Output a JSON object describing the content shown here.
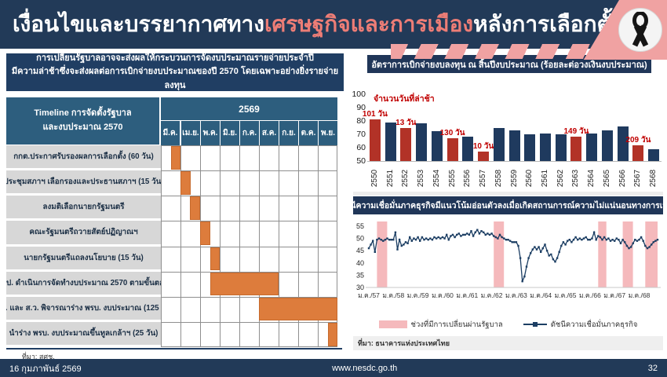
{
  "header": {
    "title_pre": "เงื่อนไขและบรรยากาศทาง",
    "title_highlight": "เศรษฐกิจและการเมือง",
    "title_post": "หลังการเลือกตั้ง",
    "ribbon_icon": "black-mourning-ribbon"
  },
  "colors": {
    "navy": "#223A58",
    "steel_blue": "#2D5E7E",
    "orange": "#DD7C3C",
    "bar_navy": "#1F3A5E",
    "bar_red": "#B23227",
    "label_red": "#C00000",
    "pink": "#F0A2A2",
    "band_pink": "#F5B9BC",
    "line_navy": "#1C3E63",
    "title_red": "#ED7D76",
    "cell_gray": "#D7D7D7"
  },
  "left": {
    "callout": {
      "line1": "การเปลี่ยนรัฐบาลอาจจะส่งผลให้กระบวนการจัดงบประมาณรายจ่ายประจำปี",
      "line2": "มีความล่าช้าซึ่งจะส่งผลต่อการเบิกจ่ายงบประมาณของปี 2570 โดยเฉพาะอย่างยิ่งรายจ่ายลงทุน"
    },
    "gantt": {
      "corner_title_line1": "Timeline การจัดตั้งรัฐบาล",
      "corner_title_line2": "และงบประมาณ 2570",
      "year": "2569",
      "months": [
        "มี.ค.",
        "เม.ย.",
        "พ.ค.",
        "มิ.ย.",
        "ก.ค.",
        "ส.ค.",
        "ก.ย.",
        "ต.ค.",
        "พ.ย."
      ],
      "rows": [
        {
          "label": "กกต.ประกาศรับรองผลการเลือกตั้ง (60 วัน)",
          "start": 0.5,
          "end": 1
        },
        {
          "label": "ประชุมสภาฯ เลือกรองและประธานสภาฯ (15 วัน)",
          "start": 1,
          "end": 1.5
        },
        {
          "label": "ลงมติเลือกนายกรัฐมนตรี",
          "start": 1.5,
          "end": 2
        },
        {
          "label": "คณะรัฐมนตรีถวายสัตย์ปฏิญาณฯ",
          "start": 2,
          "end": 2.5
        },
        {
          "label": "นายกรัฐมนตรีแถลงนโยบาย (15 วัน)",
          "start": 2.5,
          "end": 3
        },
        {
          "label": "สงป. ดำเนินการจัดทำงบประมาณ 2570 ตามขั้นตอน",
          "start": 2.5,
          "end": 6
        },
        {
          "label": "ส.ส. และ ส.ว. พิจารณาร่าง พรบ. งบประมาณ (125 วัน)",
          "start": 5,
          "end": 9
        },
        {
          "label": "นำร่าง พรบ. งบประมาณขึ้นทูลเกล้าฯ  (25 วัน)",
          "start": 8.5,
          "end": 9
        }
      ],
      "source": "ที่มา: สศช."
    }
  },
  "footer": {
    "date": "16 กุมภาพันธ์ 2569",
    "url": "www.nesdc.go.th",
    "page": "32"
  },
  "chart_data": [
    {
      "type": "bar",
      "title": "อัตราการเบิกจ่ายงบลงทุน ณ สิ้นปีงบประมาณ (ร้อยละต่อวงเงินงบประมาณ)",
      "annotation": "จำนวนวันที่ล่าช้า",
      "categories": [
        "2550",
        "2551",
        "2552",
        "2553",
        "2554",
        "2555",
        "2556",
        "2557",
        "2558",
        "2559",
        "2560",
        "2561",
        "2562",
        "2563",
        "2564",
        "2565",
        "2566",
        "2567",
        "2568"
      ],
      "values": [
        81,
        79,
        74.5,
        78.5,
        72.5,
        67,
        68,
        57,
        74.5,
        73,
        70,
        70.5,
        70,
        68,
        70.5,
        73,
        76,
        62,
        59
      ],
      "highlight": [
        true,
        false,
        true,
        false,
        false,
        true,
        false,
        true,
        false,
        false,
        false,
        false,
        false,
        true,
        false,
        false,
        false,
        true,
        false
      ],
      "delay_labels": [
        "101 วัน",
        null,
        "13 วัน",
        null,
        null,
        "130 วัน",
        null,
        "10 วัน",
        null,
        null,
        null,
        null,
        null,
        "149 วัน",
        null,
        null,
        null,
        "209 วัน",
        null
      ],
      "ylim": [
        50,
        100
      ],
      "yticks": [
        50,
        60,
        70,
        80,
        90,
        100
      ],
      "grid": false,
      "xlabel": "",
      "ylabel": ""
    },
    {
      "type": "line",
      "title": "ดัชนีความเชื่อมั่นภาคธุรกิจมีแนวโน้มอ่อนตัวลงเมื่อเกิดสถานการณ์ความไม่แน่นอนทางการเมือง",
      "x_tick_labels": [
        "ม.ค./57",
        "ม.ค./58",
        "ม.ค./59",
        "ม.ค./60",
        "ม.ค./61",
        "ม.ค./62",
        "ม.ค./63",
        "ม.ค./64",
        "ม.ค./65",
        "ม.ค./66",
        "ม.ค./67",
        "ม.ค./68"
      ],
      "x_tick_month_index": [
        0,
        12,
        24,
        36,
        48,
        60,
        72,
        84,
        96,
        108,
        120,
        132
      ],
      "values": [
        46,
        47.5,
        49,
        44.5,
        49.5,
        50,
        49.5,
        49,
        49.5,
        50,
        49.5,
        49.5,
        49.5,
        52.5,
        45.5,
        49.5,
        47,
        47.5,
        48.5,
        48,
        50.5,
        49,
        50,
        49.5,
        50.5,
        49,
        50.5,
        49.5,
        50,
        49.5,
        50,
        49.5,
        50.5,
        50,
        50.5,
        50,
        50.5,
        50,
        51.5,
        49.5,
        51,
        51.5,
        50.5,
        51.5,
        52,
        51,
        51.5,
        51.5,
        52,
        51.5,
        53,
        51,
        52.5,
        53.5,
        52,
        53,
        52.5,
        51.5,
        52,
        51.5,
        52,
        51,
        50.5,
        50,
        51.5,
        50.5,
        50,
        49.5,
        49.5,
        49,
        48.5,
        48.5,
        48.5,
        47,
        42,
        32.5,
        34.5,
        38.5,
        42,
        44,
        45.5,
        46.5,
        45.5,
        46.5,
        44.5,
        46,
        47.5,
        45,
        43,
        43.5,
        41.5,
        40.5,
        42,
        44.5,
        47,
        48.5,
        47.5,
        49,
        49.5,
        48.5,
        49.5,
        50.5,
        49.5,
        50,
        49.5,
        50,
        50.5,
        49.5,
        49.5,
        50,
        52.5,
        49.5,
        51,
        50.5,
        49.5,
        50.5,
        49.5,
        50,
        49,
        49.5,
        49,
        50,
        49.5,
        48,
        49.5,
        48.5,
        47,
        46,
        46.5,
        48,
        49.5,
        49,
        49.5,
        50.5,
        49,
        47,
        46,
        46.5,
        47.5,
        48.5,
        49,
        49.5
      ],
      "ylim": [
        30,
        55
      ],
      "yticks": [
        30,
        35,
        40,
        45,
        50,
        55
      ],
      "transition_bands": [
        [
          4,
          9
        ],
        [
          61,
          66
        ],
        [
          112,
          116
        ],
        [
          124,
          129
        ],
        [
          135,
          141
        ]
      ],
      "legend": [
        {
          "label": "ช่วงที่มีการเปลี่ยนผ่านรัฐบาล",
          "swatch": "pink-band"
        },
        {
          "label": "ดัชนีความเชื่อมั่นภาคธุรกิจ",
          "swatch": "navy-line-marker"
        }
      ],
      "source": "ที่มา: ธนาคารแห่งประเทศไทย"
    }
  ]
}
